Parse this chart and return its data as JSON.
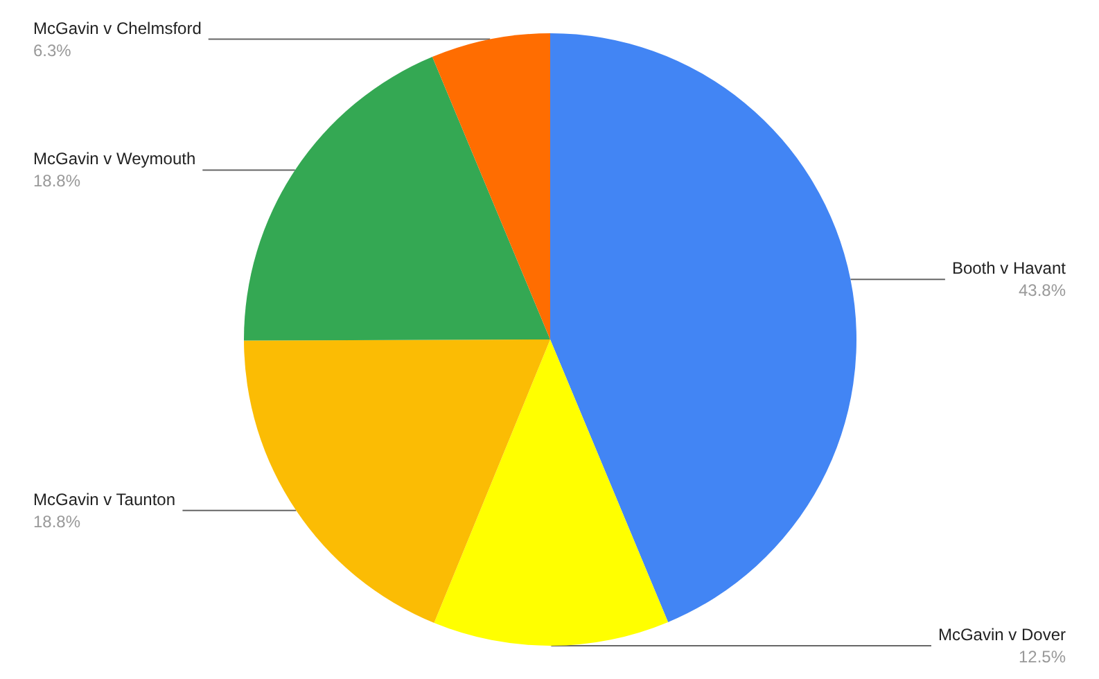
{
  "chart_data": {
    "type": "pie",
    "categories": [
      "Booth v Havant",
      "McGavin v Dover",
      "McGavin v Taunton",
      "McGavin v Weymouth",
      "McGavin v Chelmsford"
    ],
    "values": [
      43.8,
      12.5,
      18.8,
      18.8,
      6.3
    ],
    "value_labels": [
      "43.8%",
      "12.5%",
      "18.8%",
      "18.8%",
      "6.3%"
    ],
    "colors": [
      "#4285f4",
      "#ffff00",
      "#fbbc04",
      "#34a853",
      "#ff6d01"
    ],
    "legend": false
  }
}
